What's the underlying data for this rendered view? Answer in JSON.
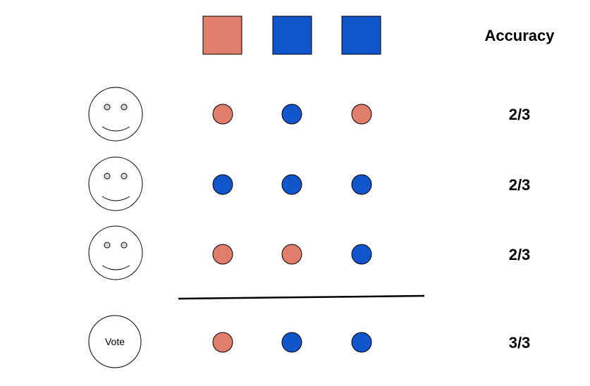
{
  "header": {
    "accuracy_label": "Accuracy"
  },
  "colors": {
    "class_a": "#e07e6b",
    "class_b": "#1155cc",
    "outline": "#000000"
  },
  "ground_truth": [
    "class_a",
    "class_b",
    "class_b"
  ],
  "rows": [
    {
      "kind": "voter",
      "icon": "smiley-face-icon",
      "predictions": [
        "class_a",
        "class_b",
        "class_a"
      ],
      "accuracy": "2/3"
    },
    {
      "kind": "voter",
      "icon": "smiley-face-icon",
      "predictions": [
        "class_b",
        "class_b",
        "class_b"
      ],
      "accuracy": "2/3"
    },
    {
      "kind": "voter",
      "icon": "smiley-face-icon",
      "predictions": [
        "class_a",
        "class_a",
        "class_b"
      ],
      "accuracy": "2/3"
    },
    {
      "kind": "vote",
      "label": "Vote",
      "predictions": [
        "class_a",
        "class_b",
        "class_b"
      ],
      "accuracy": "3/3"
    }
  ]
}
